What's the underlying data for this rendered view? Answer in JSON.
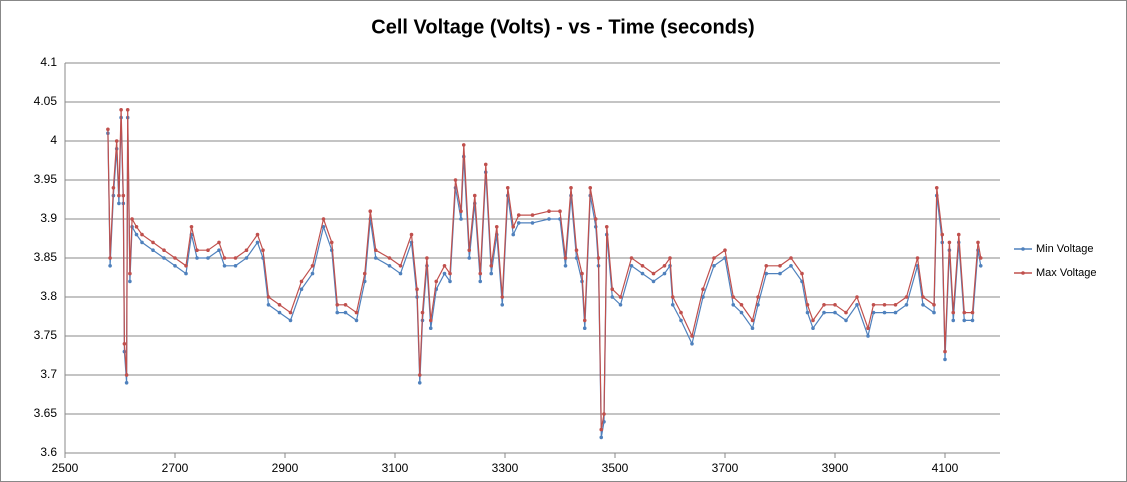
{
  "chart_data": {
    "type": "line",
    "title": "Cell Voltage (Volts) - vs - Time (seconds)",
    "x": [
      2578,
      2582,
      2588,
      2594,
      2598,
      2602,
      2606,
      2608,
      2612,
      2614,
      2618,
      2622,
      2630,
      2640,
      2660,
      2680,
      2700,
      2720,
      2730,
      2740,
      2760,
      2780,
      2790,
      2810,
      2830,
      2850,
      2860,
      2870,
      2890,
      2910,
      2930,
      2950,
      2970,
      2985,
      2995,
      3010,
      3030,
      3045,
      3055,
      3065,
      3090,
      3110,
      3130,
      3140,
      3145,
      3150,
      3158,
      3165,
      3175,
      3190,
      3200,
      3210,
      3220,
      3225,
      3235,
      3245,
      3255,
      3265,
      3275,
      3285,
      3295,
      3305,
      3315,
      3325,
      3350,
      3380,
      3400,
      3410,
      3420,
      3430,
      3440,
      3445,
      3455,
      3465,
      3470,
      3475,
      3480,
      3485,
      3495,
      3510,
      3530,
      3550,
      3570,
      3590,
      3600,
      3605,
      3620,
      3640,
      3660,
      3680,
      3700,
      3715,
      3730,
      3750,
      3760,
      3775,
      3800,
      3820,
      3840,
      3850,
      3860,
      3880,
      3900,
      3920,
      3940,
      3960,
      3970,
      3990,
      4010,
      4030,
      4050,
      4060,
      4080,
      4085,
      4095,
      4100,
      4108,
      4115,
      4125,
      4135,
      4150,
      4160,
      4165
    ],
    "series": [
      {
        "name": "Min Voltage",
        "color": "#4f81bd",
        "values": [
          4.01,
          3.84,
          3.93,
          3.99,
          3.92,
          4.03,
          3.92,
          3.73,
          3.69,
          4.03,
          3.82,
          3.89,
          3.88,
          3.87,
          3.86,
          3.85,
          3.84,
          3.83,
          3.88,
          3.85,
          3.85,
          3.86,
          3.84,
          3.84,
          3.85,
          3.87,
          3.85,
          3.79,
          3.78,
          3.77,
          3.81,
          3.83,
          3.89,
          3.86,
          3.78,
          3.78,
          3.77,
          3.82,
          3.9,
          3.85,
          3.84,
          3.83,
          3.87,
          3.8,
          3.69,
          3.77,
          3.84,
          3.76,
          3.81,
          3.83,
          3.82,
          3.94,
          3.9,
          3.98,
          3.85,
          3.92,
          3.82,
          3.96,
          3.83,
          3.88,
          3.79,
          3.93,
          3.88,
          3.895,
          3.895,
          3.9,
          3.9,
          3.84,
          3.93,
          3.85,
          3.82,
          3.76,
          3.93,
          3.89,
          3.84,
          3.62,
          3.64,
          3.88,
          3.8,
          3.79,
          3.84,
          3.83,
          3.82,
          3.83,
          3.84,
          3.79,
          3.77,
          3.74,
          3.8,
          3.84,
          3.85,
          3.79,
          3.78,
          3.76,
          3.79,
          3.83,
          3.83,
          3.84,
          3.82,
          3.78,
          3.76,
          3.78,
          3.78,
          3.77,
          3.79,
          3.75,
          3.78,
          3.78,
          3.78,
          3.79,
          3.84,
          3.79,
          3.78,
          3.93,
          3.87,
          3.72,
          3.86,
          3.77,
          3.87,
          3.77,
          3.77,
          3.86,
          3.84
        ]
      },
      {
        "name": "Max Voltage",
        "color": "#c0504d",
        "values": [
          4.015,
          3.85,
          3.94,
          4.0,
          3.93,
          4.04,
          3.93,
          3.74,
          3.7,
          4.04,
          3.83,
          3.9,
          3.89,
          3.88,
          3.87,
          3.86,
          3.85,
          3.84,
          3.89,
          3.86,
          3.86,
          3.87,
          3.85,
          3.85,
          3.86,
          3.88,
          3.86,
          3.8,
          3.79,
          3.78,
          3.82,
          3.84,
          3.9,
          3.87,
          3.79,
          3.79,
          3.78,
          3.83,
          3.91,
          3.86,
          3.85,
          3.84,
          3.88,
          3.81,
          3.7,
          3.78,
          3.85,
          3.77,
          3.82,
          3.84,
          3.83,
          3.95,
          3.91,
          3.995,
          3.86,
          3.93,
          3.83,
          3.97,
          3.84,
          3.89,
          3.8,
          3.94,
          3.89,
          3.905,
          3.905,
          3.91,
          3.91,
          3.85,
          3.94,
          3.86,
          3.83,
          3.77,
          3.94,
          3.9,
          3.85,
          3.63,
          3.65,
          3.89,
          3.81,
          3.8,
          3.85,
          3.84,
          3.83,
          3.84,
          3.85,
          3.8,
          3.78,
          3.75,
          3.81,
          3.85,
          3.86,
          3.8,
          3.79,
          3.77,
          3.8,
          3.84,
          3.84,
          3.85,
          3.83,
          3.79,
          3.77,
          3.79,
          3.79,
          3.78,
          3.8,
          3.76,
          3.79,
          3.79,
          3.79,
          3.8,
          3.85,
          3.8,
          3.79,
          3.94,
          3.88,
          3.73,
          3.87,
          3.78,
          3.88,
          3.78,
          3.78,
          3.87,
          3.85
        ]
      }
    ],
    "xlim": [
      2500,
      4200
    ],
    "xticks": [
      2500,
      2700,
      2900,
      3100,
      3300,
      3500,
      3700,
      3900,
      4100
    ],
    "ylim": [
      3.6,
      4.1
    ],
    "yticks": [
      3.6,
      3.65,
      3.7,
      3.75,
      3.8,
      3.85,
      3.9,
      3.95,
      4,
      4.05,
      4.1
    ],
    "grid": true,
    "legend": "right"
  }
}
